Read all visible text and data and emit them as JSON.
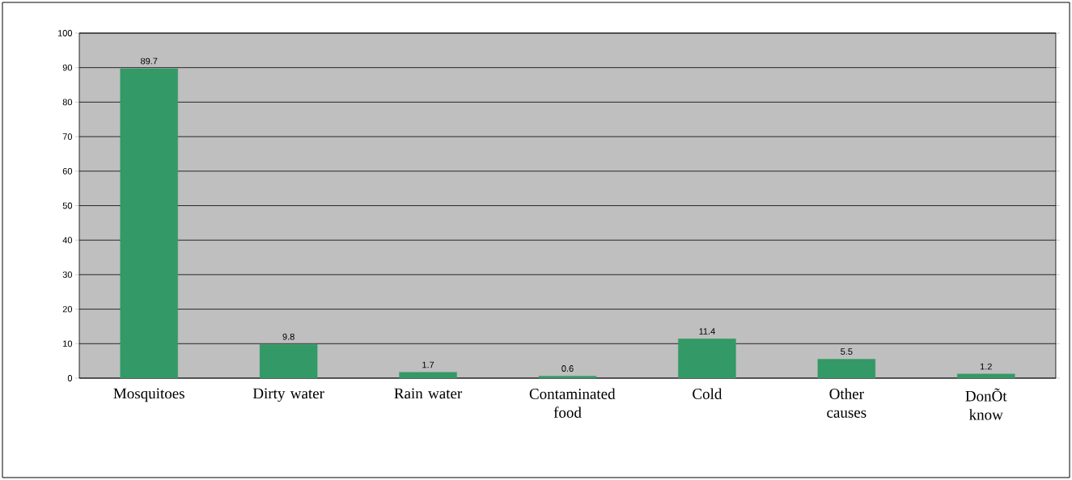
{
  "chart_data": {
    "type": "bar",
    "categories": [
      "Mosquitoes",
      "Dirty water",
      "Rain water",
      "Contaminated food",
      "Cold",
      "Other causes",
      "DonÕt know"
    ],
    "values": [
      89.7,
      9.8,
      1.7,
      0.6,
      11.4,
      5.5,
      1.2
    ],
    "color": "#339966",
    "ylim": [
      0,
      100
    ],
    "yticks": [
      0,
      10,
      20,
      30,
      40,
      50,
      60,
      70,
      80,
      90,
      100
    ],
    "grid": "y",
    "data_labels": true
  }
}
